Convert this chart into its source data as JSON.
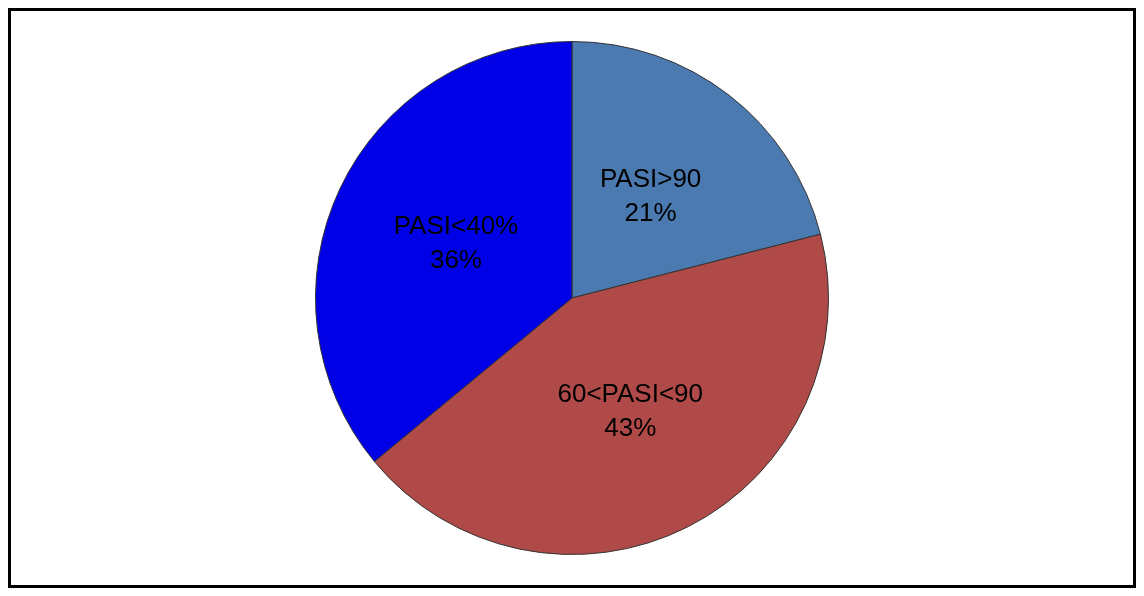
{
  "chart_data": {
    "type": "pie",
    "categories": [
      "PASI>90",
      "60<PASI<90",
      "PASI<40%"
    ],
    "values": [
      21,
      43,
      36
    ],
    "colors": [
      "#4a7ab0",
      "#b04a48",
      "#0000e6"
    ],
    "value_labels": [
      "21%",
      "43%",
      "36%"
    ]
  }
}
